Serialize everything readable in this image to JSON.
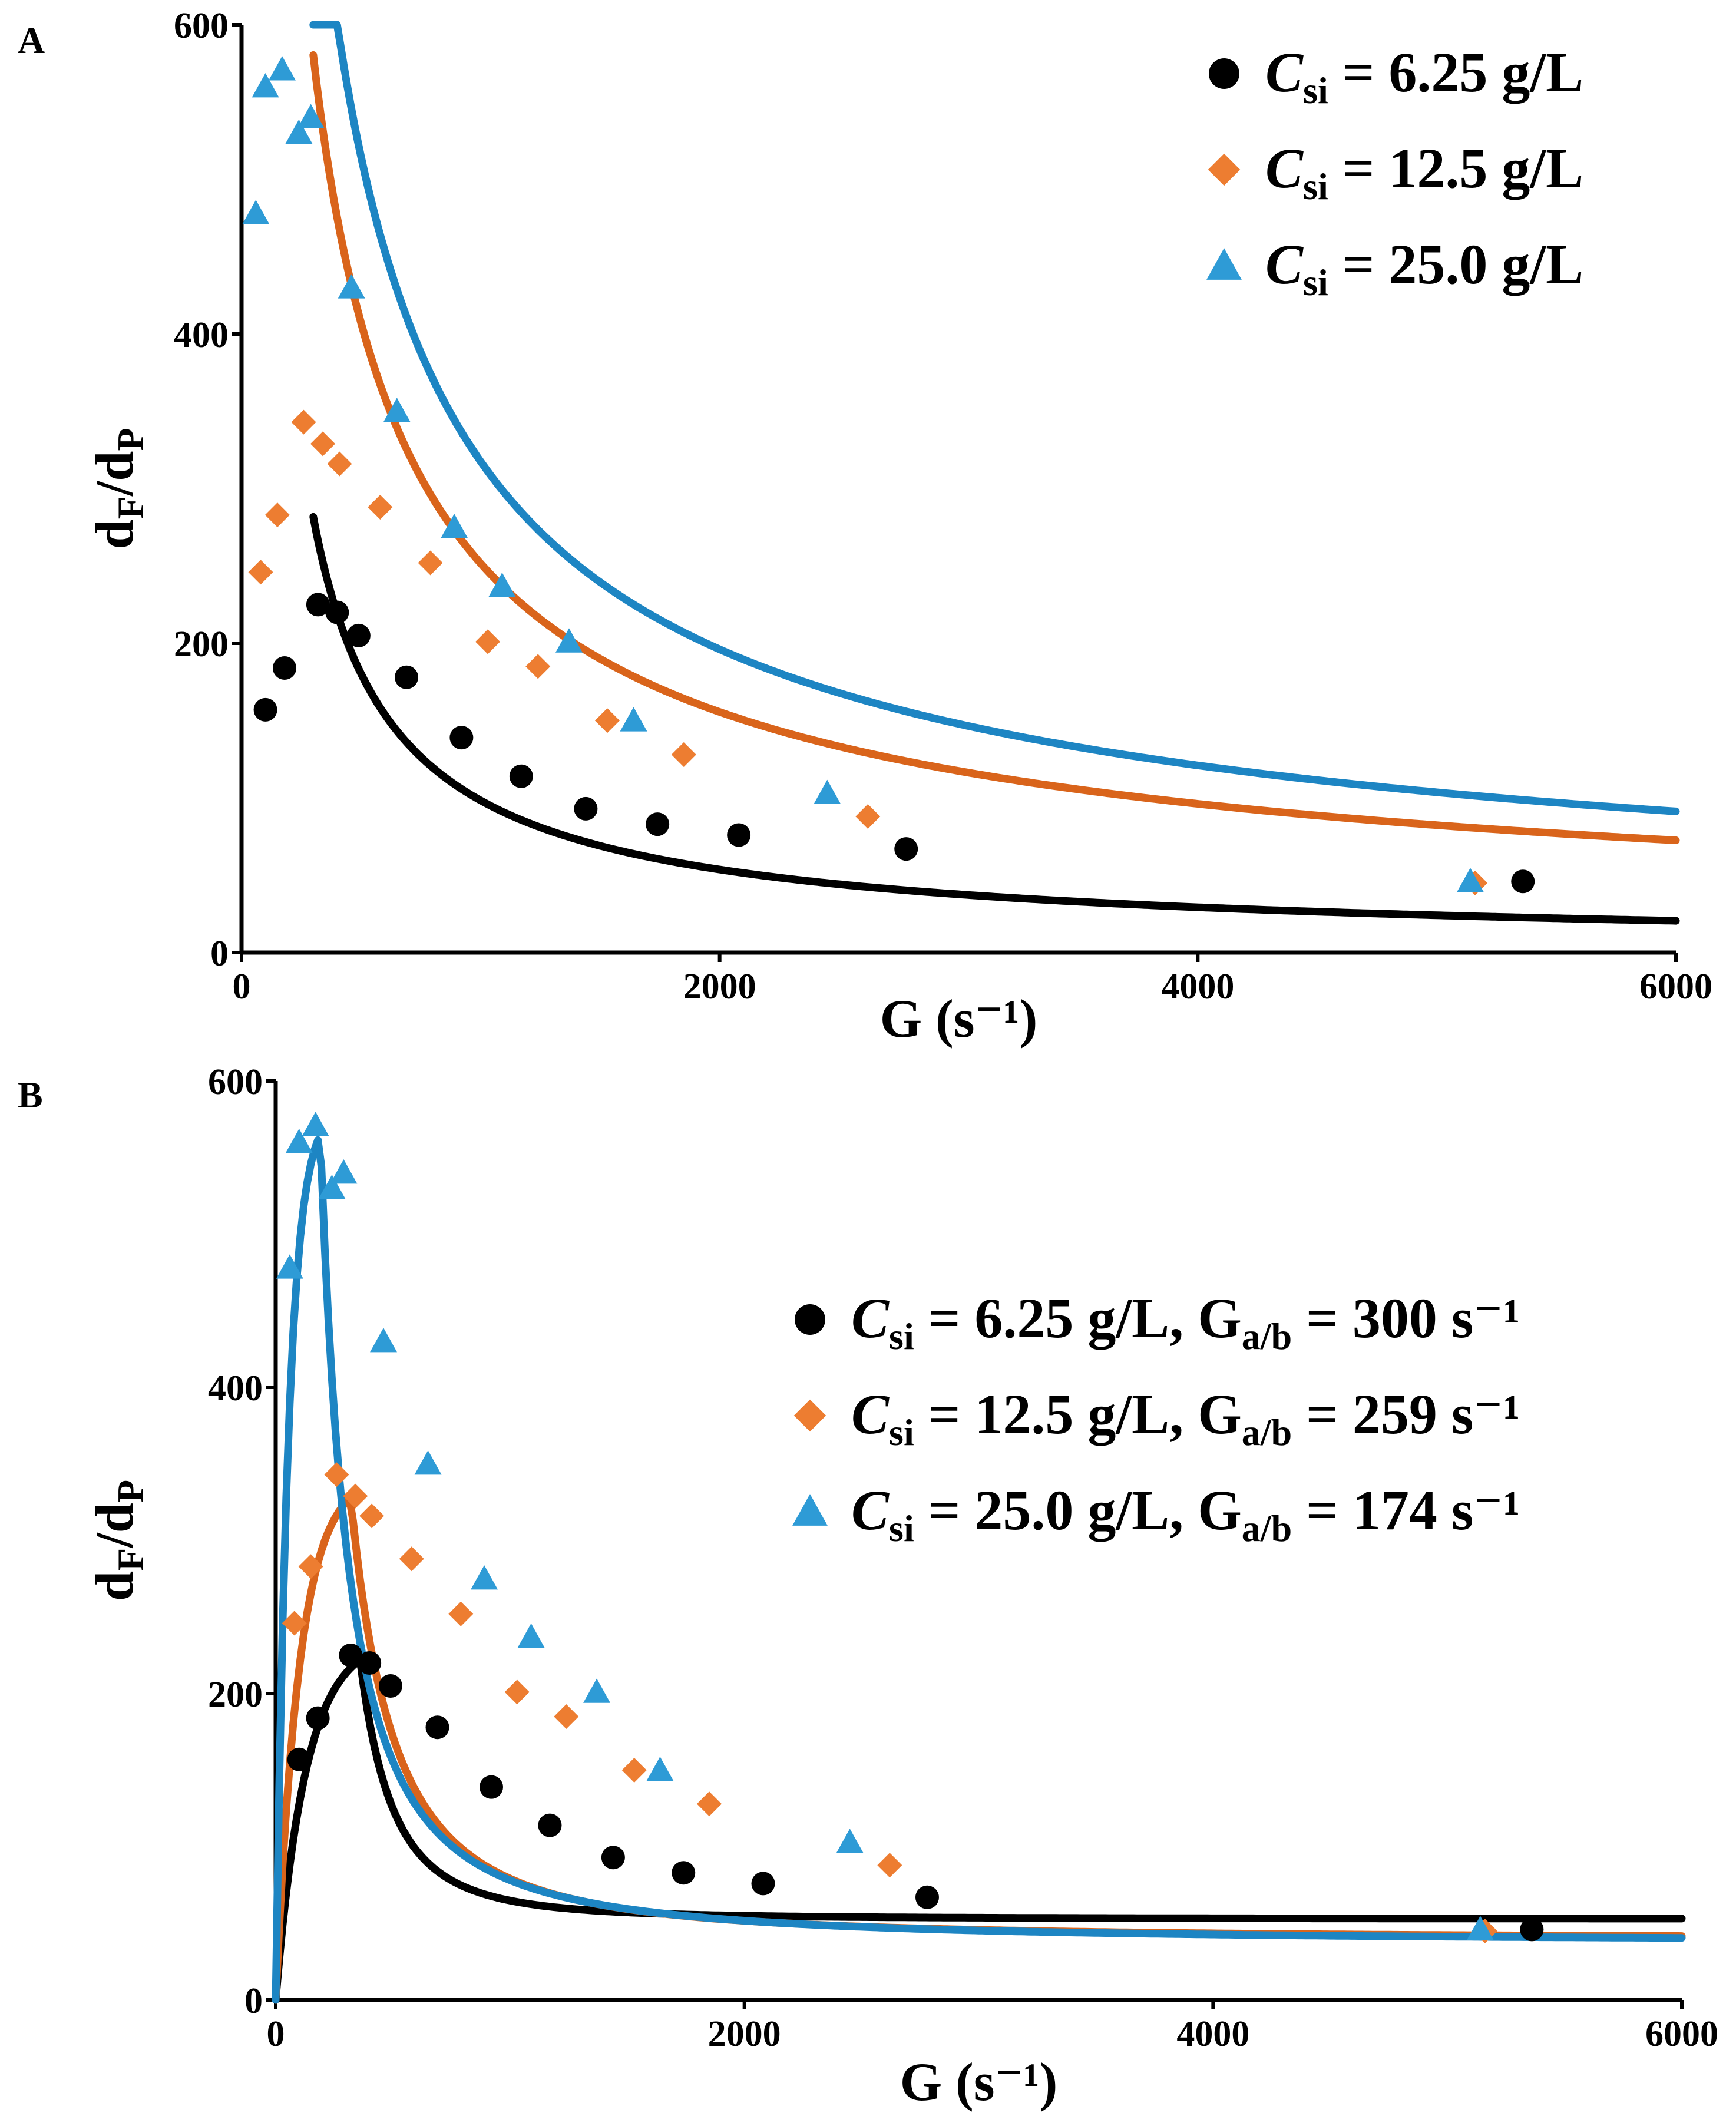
{
  "chart_data": [
    {
      "panel": "A",
      "type": "scatter",
      "xlabel": "G (s⁻¹)",
      "ylabel": "dF/dP",
      "xlim": [
        0,
        6000
      ],
      "ylim": [
        0,
        600
      ],
      "xticks": [
        "0",
        "2000",
        "4000",
        "6000"
      ],
      "yticks": [
        "0",
        "200",
        "400",
        "600"
      ],
      "legend_position": "top-right",
      "series": [
        {
          "name": "Csi = 6.25 g/L",
          "legend": {
            "var": "C",
            "sub": "si",
            "value": " = 6.25 g/L"
          },
          "marker": "circle",
          "color": "#000000",
          "x": [
            100,
            180,
            320,
            400,
            490,
            690,
            920,
            1170,
            1440,
            1740,
            2080,
            2780,
            5360
          ],
          "y": [
            157,
            184,
            225,
            220,
            205,
            178,
            139,
            114,
            93,
            83,
            76,
            67,
            46
          ],
          "fit": {
            "model": "power",
            "a": 41200,
            "b": -0.874,
            "xmin": 300,
            "xmax": 6000
          }
        },
        {
          "name": "Csi = 12.5 g/L",
          "legend": {
            "var": "C",
            "sub": "si",
            "value": " = 12.5 g/L"
          },
          "marker": "diamond",
          "color": "#ED7D31",
          "x": [
            80,
            150,
            260,
            340,
            410,
            580,
            790,
            1030,
            1240,
            1530,
            1850,
            2620,
            5160
          ],
          "y": [
            246,
            283,
            343,
            329,
            316,
            288,
            252,
            201,
            185,
            150,
            128,
            88,
            45
          ],
          "fit": {
            "model": "power",
            "a": 30400,
            "b": -0.694,
            "xmin": 300,
            "xmax": 6000
          }
        },
        {
          "name": "Csi = 25.0 g/L",
          "legend": {
            "var": "C",
            "sub": "si",
            "value": " = 25.0 g/L"
          },
          "marker": "triangle",
          "color": "#2E9BD6",
          "x": [
            60,
            100,
            170,
            240,
            290,
            460,
            650,
            890,
            1090,
            1370,
            1640,
            2450,
            5140
          ],
          "y": [
            478,
            560,
            571,
            530,
            540,
            430,
            350,
            275,
            237,
            201,
            150,
            103,
            46
          ],
          "fit": {
            "model": "power",
            "a": 38900,
            "b": -0.696,
            "xmin": 300,
            "xmax": 6000
          }
        }
      ]
    },
    {
      "panel": "B",
      "type": "scatter",
      "xlabel": "G (s⁻¹)",
      "ylabel": "dF/dP",
      "xlim": [
        0,
        6000
      ],
      "ylim": [
        0,
        600
      ],
      "xticks": [
        "0",
        "2000",
        "4000",
        "6000"
      ],
      "yticks": [
        "0",
        "200",
        "400",
        "600"
      ],
      "legend_position": "right",
      "series": [
        {
          "name": "Csi = 6.25 g/L, Ga/b = 300 s⁻¹",
          "legend": {
            "var": "C",
            "sub": "si",
            "value": " = 6.25 g/L,",
            "g": "G",
            "gsub": "a/b",
            "gvalue": " = 300 s⁻¹"
          },
          "marker": "circle",
          "color": "#000000",
          "x": [
            100,
            180,
            320,
            400,
            490,
            690,
            920,
            1170,
            1440,
            1740,
            2080,
            2780,
            5360
          ],
          "y": [
            157,
            184,
            225,
            220,
            205,
            178,
            139,
            114,
            93,
            83,
            76,
            67,
            46
          ],
          "fit": {
            "model": "peaked",
            "peak_x": 360,
            "peak_y": 222,
            "baseline": 53,
            "rise_k": 2.8,
            "decay": 2.6,
            "xmin": 0,
            "xmax": 6000
          }
        },
        {
          "name": "Csi = 12.5 g/L, Ga/b = 259 s⁻¹",
          "legend": {
            "var": "C",
            "sub": "si",
            "value": " = 12.5 g/L,",
            "g": "G",
            "gsub": "a/b",
            "gvalue": " = 259 s⁻¹"
          },
          "marker": "diamond",
          "color": "#ED7D31",
          "x": [
            80,
            150,
            260,
            340,
            410,
            580,
            790,
            1030,
            1240,
            1530,
            1850,
            2620,
            5160
          ],
          "y": [
            246,
            283,
            343,
            329,
            316,
            288,
            252,
            201,
            185,
            150,
            128,
            88,
            45
          ],
          "fit": {
            "model": "peaked",
            "peak_x": 320,
            "peak_y": 328,
            "baseline": 40,
            "rise_k": 3.2,
            "decay": 1.75,
            "xmin": 0,
            "xmax": 6000
          }
        },
        {
          "name": "Csi = 25.0 g/L, Ga/b = 174 s⁻¹",
          "legend": {
            "var": "C",
            "sub": "si",
            "value": " = 25.0 g/L,",
            "g": "G",
            "gsub": "a/b",
            "gvalue": " = 174 s⁻¹"
          },
          "marker": "triangle",
          "color": "#2E9BD6",
          "x": [
            60,
            100,
            170,
            240,
            290,
            460,
            650,
            890,
            1090,
            1370,
            1640,
            2450,
            5140
          ],
          "y": [
            478,
            560,
            571,
            530,
            540,
            430,
            350,
            275,
            237,
            201,
            150,
            103,
            46
          ],
          "fit": {
            "model": "peaked",
            "peak_x": 190,
            "peak_y": 565,
            "baseline": 38,
            "rise_k": 3.5,
            "decay": 1.55,
            "xmin": 0,
            "xmax": 6000
          }
        }
      ]
    }
  ],
  "fit_colors": [
    "#000000",
    "#D9641B",
    "#1D85C3"
  ]
}
